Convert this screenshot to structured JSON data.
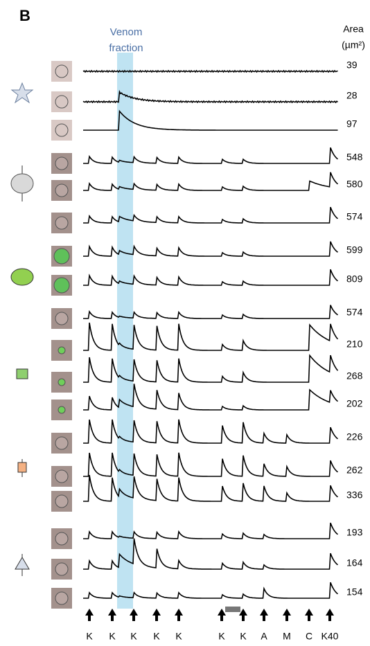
{
  "panel_label": "B",
  "venom_label": [
    "Venom",
    "fraction"
  ],
  "area_header": [
    "Area",
    "(µm²)"
  ],
  "cells": [
    {
      "area": 39
    },
    {
      "area": 28
    },
    {
      "area": 97
    },
    {
      "area": 548
    },
    {
      "area": 580
    },
    {
      "area": 574
    },
    {
      "area": 599
    },
    {
      "area": 809
    },
    {
      "area": 574
    },
    {
      "area": 210
    },
    {
      "area": 268
    },
    {
      "area": 202
    },
    {
      "area": 226
    },
    {
      "area": 262
    },
    {
      "area": 336
    },
    {
      "area": 193
    },
    {
      "area": 164
    },
    {
      "area": 154
    }
  ],
  "stimuli": [
    "K",
    "K",
    "K",
    "K",
    "K",
    "K",
    "K",
    "A",
    "M",
    "C",
    "K40"
  ]
}
